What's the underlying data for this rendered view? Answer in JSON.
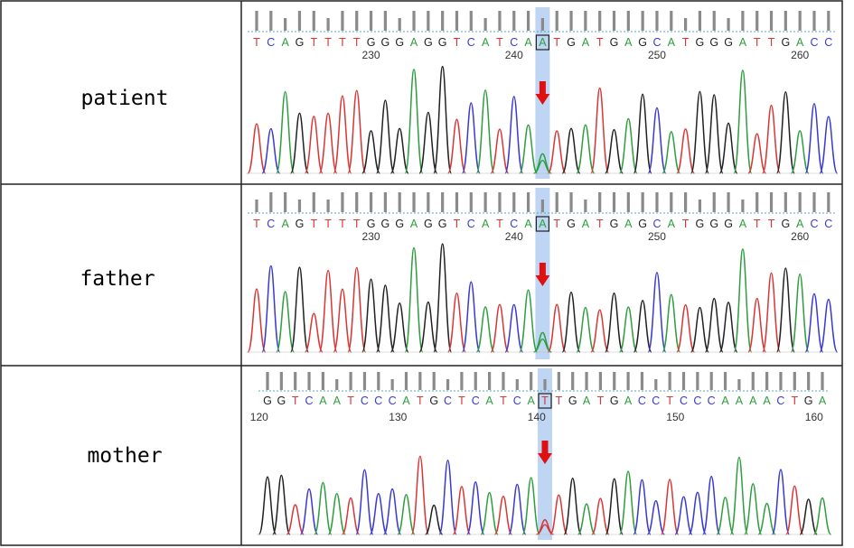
{
  "colors": {
    "A": "#2e9e3e",
    "C": "#3a3ad0",
    "G": "#222222",
    "T": "#d93636",
    "highlight": "#a8c8ef",
    "arrow": "#e01010",
    "border": "#222222"
  },
  "rows": [
    {
      "label": "patient",
      "sequence": "TCAGTTTTGGGAGGTCATCAATGATGAGCATGGGATTGACC",
      "highlight_index": 20,
      "positions": [
        {
          "label": "230",
          "index": 8
        },
        {
          "label": "240",
          "index": 18
        },
        {
          "label": "250",
          "index": 28
        },
        {
          "label": "260",
          "index": 38
        }
      ]
    },
    {
      "label": "father",
      "sequence": "TCAGTTTTGGGAGGTCATCAATGATGAGCATGGGATTGACC",
      "highlight_index": 20,
      "positions": [
        {
          "label": "230",
          "index": 8
        },
        {
          "label": "240",
          "index": 18
        },
        {
          "label": "250",
          "index": 28
        },
        {
          "label": "260",
          "index": 38
        }
      ]
    },
    {
      "label": "mother",
      "sequence": "GGTCAATCCCATGCTCATCATTGATGACCTCCCAAAACTGA",
      "highlight_index": 20,
      "positions": [
        {
          "label": "120",
          "index": -0.6
        },
        {
          "label": "130",
          "index": 9.4
        },
        {
          "label": "140",
          "index": 19.4
        },
        {
          "label": "150",
          "index": 29.4
        },
        {
          "label": "160",
          "index": 39.4
        }
      ]
    }
  ]
}
